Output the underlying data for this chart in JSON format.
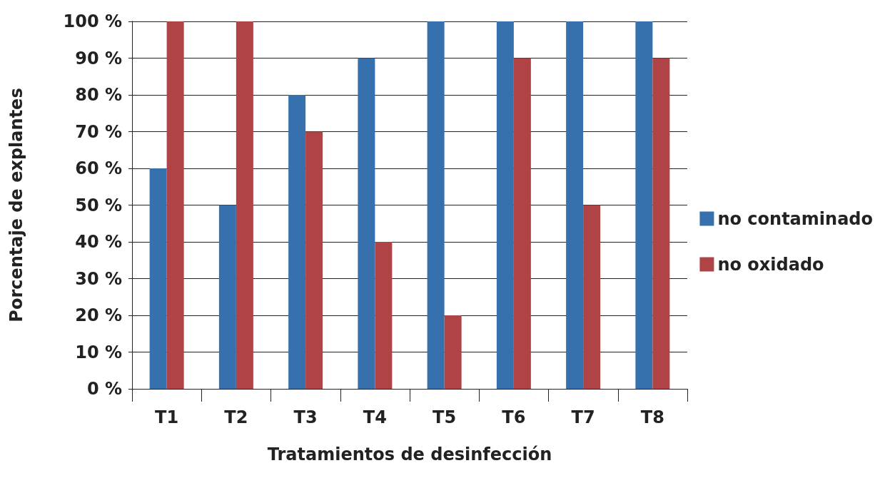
{
  "chart_data": {
    "type": "bar",
    "xlabel": "Tratamientos de desinfección",
    "ylabel": "Porcentaje de explantes",
    "categories": [
      "T1",
      "T2",
      "T3",
      "T4",
      "T5",
      "T6",
      "T7",
      "T8"
    ],
    "series": [
      {
        "name": "no contaminado",
        "color": "#3670ad",
        "values": [
          60,
          50,
          80,
          90,
          100,
          100,
          100,
          100
        ]
      },
      {
        "name": "no oxidado",
        "color": "#b04346",
        "values": [
          100,
          100,
          70,
          40,
          20,
          90,
          50,
          90
        ]
      }
    ],
    "ylim": [
      0,
      100
    ],
    "yticks": [
      {
        "value": 0,
        "label": "0 %"
      },
      {
        "value": 10,
        "label": "10 %"
      },
      {
        "value": 20,
        "label": "20 %"
      },
      {
        "value": 30,
        "label": "30 %"
      },
      {
        "value": 40,
        "label": "40 %"
      },
      {
        "value": 50,
        "label": "50 %"
      },
      {
        "value": 60,
        "label": "60 %"
      },
      {
        "value": 70,
        "label": "70 %"
      },
      {
        "value": 80,
        "label": "80 %"
      },
      {
        "value": 90,
        "label": "90 %"
      },
      {
        "value": 100,
        "label": "100 %"
      }
    ],
    "grid": "y",
    "legend": "right"
  }
}
